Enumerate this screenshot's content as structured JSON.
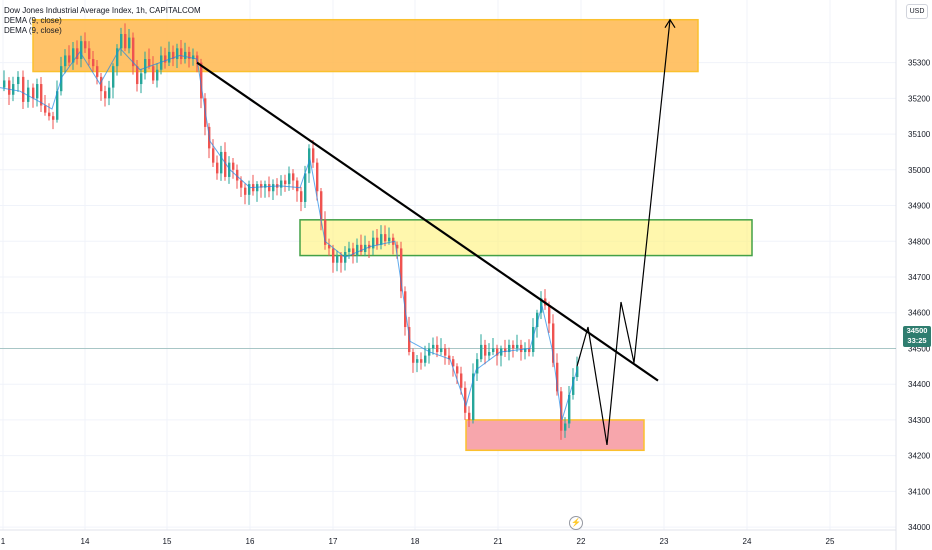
{
  "legend": {
    "title": "Dow Jones Industrial Average Index, 1h, CAPITALCOM",
    "indicator_1": "DEMA (9, close)",
    "indicator_2": "DEMA (9, close)"
  },
  "currency": "USD",
  "last_price": {
    "value": "34500",
    "countdown": "33:25"
  },
  "colors": {
    "up": "#26a69a",
    "down": "#ef5350",
    "dema": "#1e88e5",
    "orange_zone": "#ffb74d",
    "yellow_zone": "#fff176",
    "red_zone": "#f7a1a8"
  },
  "chart_data": {
    "type": "candlestick",
    "title": "Dow Jones Industrial Average Index, 1h, CAPITALCOM",
    "ylim": [
      33950,
      35450
    ],
    "yticks": [
      34000,
      34100,
      34200,
      34300,
      34400,
      34500,
      34600,
      34700,
      34800,
      34900,
      35000,
      35100,
      35200,
      35300
    ],
    "xticks": [
      "1",
      "14",
      "15",
      "16",
      "17",
      "18",
      "21",
      "22",
      "23",
      "24",
      "25"
    ],
    "price_path": [
      [
        0,
        35230
      ],
      [
        4,
        35250
      ],
      [
        9,
        35210
      ],
      [
        13,
        35240
      ],
      [
        18,
        35260
      ],
      [
        23,
        35190
      ],
      [
        28,
        35230
      ],
      [
        33,
        35200
      ],
      [
        37,
        35240
      ],
      [
        41,
        35180
      ],
      [
        45,
        35160
      ],
      [
        49,
        35150
      ],
      [
        53,
        35140
      ],
      [
        57,
        35220
      ],
      [
        61,
        35290
      ],
      [
        65,
        35320
      ],
      [
        69,
        35300
      ],
      [
        73,
        35340
      ],
      [
        77,
        35310
      ],
      [
        81,
        35360
      ],
      [
        85,
        35340
      ],
      [
        89,
        35310
      ],
      [
        93,
        35290
      ],
      [
        97,
        35260
      ],
      [
        101,
        35220
      ],
      [
        105,
        35200
      ],
      [
        109,
        35230
      ],
      [
        113,
        35290
      ],
      [
        117,
        35340
      ],
      [
        121,
        35380
      ],
      [
        125,
        35340
      ],
      [
        129,
        35370
      ],
      [
        133,
        35290
      ],
      [
        137,
        35240
      ],
      [
        141,
        35270
      ],
      [
        145,
        35310
      ],
      [
        149,
        35290
      ],
      [
        153,
        35250
      ],
      [
        157,
        35280
      ],
      [
        161,
        35320
      ],
      [
        165,
        35300
      ],
      [
        169,
        35330
      ],
      [
        173,
        35310
      ],
      [
        177,
        35340
      ],
      [
        181,
        35310
      ],
      [
        185,
        35330
      ],
      [
        189,
        35310
      ],
      [
        193,
        35320
      ],
      [
        197,
        35300
      ],
      [
        201,
        35200
      ],
      [
        205,
        35120
      ],
      [
        209,
        35060
      ],
      [
        213,
        35020
      ],
      [
        217,
        34990
      ],
      [
        221,
        35050
      ],
      [
        225,
        34980
      ],
      [
        229,
        35020
      ],
      [
        233,
        35000
      ],
      [
        237,
        34970
      ],
      [
        241,
        34950
      ],
      [
        245,
        34930
      ],
      [
        249,
        34960
      ],
      [
        253,
        34940
      ],
      [
        257,
        34960
      ],
      [
        261,
        34950
      ],
      [
        265,
        34960
      ],
      [
        269,
        34940
      ],
      [
        273,
        34960
      ],
      [
        277,
        34950
      ],
      [
        281,
        34970
      ],
      [
        285,
        34960
      ],
      [
        289,
        34990
      ],
      [
        293,
        34970
      ],
      [
        297,
        34940
      ],
      [
        301,
        34910
      ],
      [
        305,
        34990
      ],
      [
        309,
        35060
      ],
      [
        313,
        35020
      ],
      [
        317,
        34940
      ],
      [
        321,
        34860
      ],
      [
        325,
        34790
      ],
      [
        329,
        34780
      ],
      [
        333,
        34740
      ],
      [
        337,
        34760
      ],
      [
        341,
        34740
      ],
      [
        345,
        34770
      ],
      [
        349,
        34780
      ],
      [
        353,
        34760
      ],
      [
        357,
        34790
      ],
      [
        361,
        34770
      ],
      [
        365,
        34790
      ],
      [
        369,
        34780
      ],
      [
        373,
        34810
      ],
      [
        377,
        34790
      ],
      [
        381,
        34820
      ],
      [
        385,
        34800
      ],
      [
        389,
        34810
      ],
      [
        393,
        34790
      ],
      [
        397,
        34780
      ],
      [
        401,
        34660
      ],
      [
        405,
        34560
      ],
      [
        409,
        34490
      ],
      [
        413,
        34460
      ],
      [
        417,
        34470
      ],
      [
        421,
        34460
      ],
      [
        425,
        34480
      ],
      [
        429,
        34500
      ],
      [
        433,
        34510
      ],
      [
        437,
        34490
      ],
      [
        441,
        34500
      ],
      [
        445,
        34480
      ],
      [
        449,
        34470
      ],
      [
        453,
        34450
      ],
      [
        457,
        34430
      ],
      [
        461,
        34390
      ],
      [
        465,
        34320
      ],
      [
        469,
        34300
      ],
      [
        473,
        34430
      ],
      [
        477,
        34470
      ],
      [
        481,
        34510
      ],
      [
        485,
        34480
      ],
      [
        489,
        34490
      ],
      [
        493,
        34500
      ],
      [
        497,
        34480
      ],
      [
        501,
        34500
      ],
      [
        505,
        34490
      ],
      [
        509,
        34510
      ],
      [
        513,
        34500
      ],
      [
        517,
        34510
      ],
      [
        521,
        34490
      ],
      [
        525,
        34500
      ],
      [
        529,
        34490
      ],
      [
        533,
        34560
      ],
      [
        537,
        34600
      ],
      [
        541,
        34640
      ],
      [
        545,
        34620
      ],
      [
        549,
        34570
      ],
      [
        553,
        34460
      ],
      [
        557,
        34380
      ],
      [
        561,
        34270
      ],
      [
        565,
        34290
      ],
      [
        569,
        34370
      ],
      [
        573,
        34420
      ],
      [
        577,
        34450
      ]
    ],
    "dema_path": [
      [
        0,
        35230
      ],
      [
        20,
        35220
      ],
      [
        40,
        35190
      ],
      [
        52,
        35170
      ],
      [
        62,
        35260
      ],
      [
        80,
        35330
      ],
      [
        100,
        35240
      ],
      [
        120,
        35340
      ],
      [
        140,
        35280
      ],
      [
        160,
        35300
      ],
      [
        180,
        35320
      ],
      [
        197,
        35310
      ],
      [
        210,
        35080
      ],
      [
        230,
        35000
      ],
      [
        250,
        34950
      ],
      [
        280,
        34955
      ],
      [
        300,
        34950
      ],
      [
        310,
        35030
      ],
      [
        325,
        34800
      ],
      [
        345,
        34755
      ],
      [
        370,
        34785
      ],
      [
        395,
        34800
      ],
      [
        410,
        34520
      ],
      [
        430,
        34490
      ],
      [
        450,
        34470
      ],
      [
        466,
        34340
      ],
      [
        476,
        34440
      ],
      [
        500,
        34490
      ],
      [
        530,
        34500
      ],
      [
        542,
        34620
      ],
      [
        552,
        34500
      ],
      [
        562,
        34300
      ],
      [
        577,
        34440
      ]
    ],
    "zones": [
      {
        "color": "orange",
        "time_from": 33,
        "time_to": 698,
        "price_low": 35275,
        "price_high": 35420
      },
      {
        "color": "yellow",
        "time_from": 300,
        "time_to": 752,
        "price_low": 34760,
        "price_high": 34860
      },
      {
        "color": "red",
        "time_from": 466,
        "time_to": 644,
        "price_low": 34215,
        "price_high": 34300
      }
    ],
    "trendline": [
      [
        197,
        35300
      ],
      [
        658,
        34410
      ]
    ],
    "projection_path": [
      [
        577,
        34450
      ],
      [
        588,
        34560
      ],
      [
        607,
        34230
      ],
      [
        621,
        34630
      ],
      [
        634,
        34460
      ],
      [
        670,
        35420
      ]
    ],
    "last_price": 34500
  }
}
